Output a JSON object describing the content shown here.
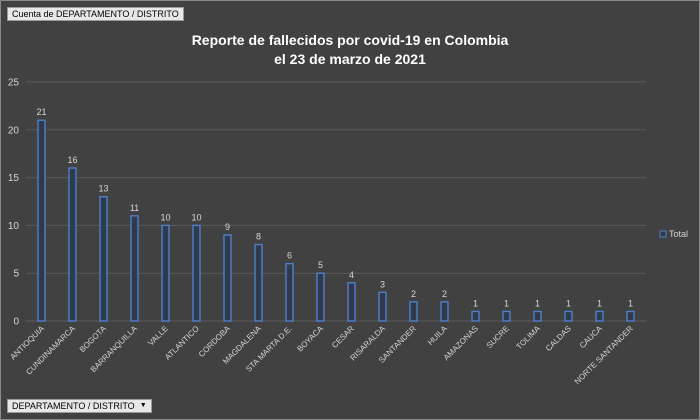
{
  "values_field": "Cuenta de DEPARTAMENTO / DISTRITO",
  "axis_field": "DEPARTAMENTO / DISTRITO",
  "axis_field_arrow": "▼",
  "colors": {
    "background": "#414141",
    "bar_stroke": "#4f7fcc",
    "bar_fill": "#313a4a",
    "grid": "#595959"
  },
  "chart_data": {
    "type": "bar",
    "title_lines": [
      "Reporte de fallecidos por covid-19 en Colombia",
      "el 23 de marzo de 2021"
    ],
    "categories": [
      "ANTIOQUIA",
      "CUNDINAMARCA",
      "BOGOTA",
      "BARRANQUILLA",
      "VALLE",
      "ATLANTICO",
      "CORDOBA",
      "MAGDALENA",
      "STA MARTA D.E.",
      "BOYACA",
      "CESAR",
      "RISARALDA",
      "SANTANDER",
      "HUILA",
      "AMAZONAS",
      "SUCRE",
      "TOLIMA",
      "CALDAS",
      "CAUCA",
      "NORTE SANTANDER"
    ],
    "series": [
      {
        "name": "Total",
        "values": [
          21,
          16,
          13,
          11,
          10,
          10,
          9,
          8,
          6,
          5,
          4,
          3,
          2,
          2,
          1,
          1,
          1,
          1,
          1,
          1
        ]
      }
    ],
    "ylim": [
      0,
      25
    ],
    "yticks": [
      0,
      5,
      10,
      15,
      20,
      25
    ],
    "grid": true,
    "data_labels": true,
    "legend_position": "right"
  }
}
